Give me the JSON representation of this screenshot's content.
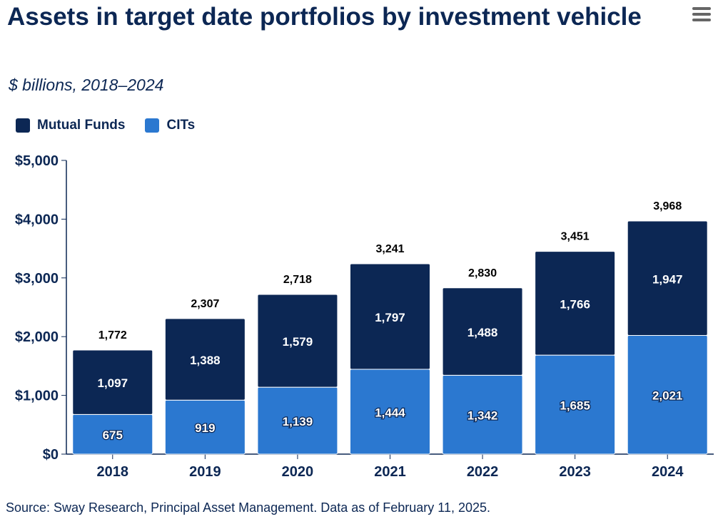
{
  "title": "Assets in target date portfolios by investment vehicle",
  "subtitle": "$ billions, 2018–2024",
  "menu_icon": "hamburger-menu-icon",
  "source": "Source: Sway Research, Principal Asset Management. Data as of February 11, 2025.",
  "legend": [
    {
      "label": "Mutual Funds",
      "color": "#0c2754"
    },
    {
      "label": "CITs",
      "color": "#2b78d0"
    }
  ],
  "chart_data": {
    "type": "bar",
    "stacked": true,
    "title": "Assets in target date portfolios by investment vehicle",
    "subtitle": "$ billions, 2018–2024",
    "categories": [
      "2018",
      "2019",
      "2020",
      "2021",
      "2022",
      "2023",
      "2024"
    ],
    "series": [
      {
        "name": "CITs",
        "color": "#2b78d0",
        "values": [
          675,
          919,
          1139,
          1444,
          1342,
          1685,
          2021
        ],
        "labels": [
          "675",
          "919",
          "1,139",
          "1,444",
          "1,342",
          "1,685",
          "2,021"
        ]
      },
      {
        "name": "Mutual Funds",
        "color": "#0c2754",
        "values": [
          1097,
          1388,
          1579,
          1797,
          1488,
          1766,
          1947
        ],
        "labels": [
          "1,097",
          "1,388",
          "1,579",
          "1,797",
          "1,488",
          "1,766",
          "1,947"
        ]
      }
    ],
    "totals": [
      "1,772",
      "2,307",
      "2,718",
      "3,241",
      "2,830",
      "3,451",
      "3,968"
    ],
    "ylim": [
      0,
      5000
    ],
    "yticks": [
      "$0",
      "$1,000",
      "$2,000",
      "$3,000",
      "$4,000",
      "$5,000"
    ],
    "grid": false,
    "legend_position": "top-left"
  }
}
